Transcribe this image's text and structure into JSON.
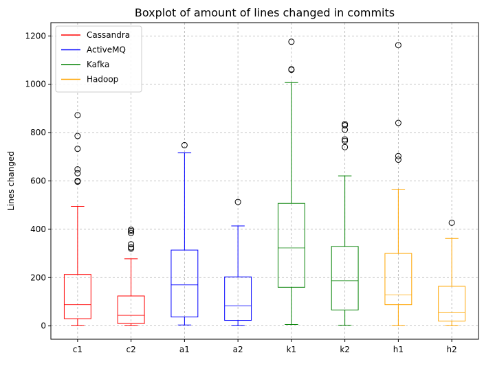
{
  "chart_data": {
    "type": "box",
    "title": "Boxplot of amount of lines changed in commits",
    "xlabel": "",
    "ylabel": "Lines changed",
    "ylim": [
      -55,
      1255
    ],
    "yticks": [
      0,
      200,
      400,
      600,
      800,
      1000,
      1200
    ],
    "grid": true,
    "legend_position": "top-left",
    "legend": [
      {
        "name": "Cassandra",
        "color": "#ff0000"
      },
      {
        "name": "ActiveMQ",
        "color": "#0000ff"
      },
      {
        "name": "Kafka",
        "color": "#008000"
      },
      {
        "name": "Hadoop",
        "color": "#ffa500"
      }
    ],
    "boxes": [
      {
        "category": "c1",
        "color": "#ff0000",
        "whisker_low": 1,
        "q1": 30,
        "median": 88,
        "q3": 213,
        "whisker_high": 495,
        "outliers": [
          597,
          600,
          632,
          648,
          733,
          786,
          872
        ]
      },
      {
        "category": "c2",
        "color": "#ff0000",
        "whisker_low": 1,
        "q1": 10,
        "median": 44,
        "q3": 124,
        "whisker_high": 278,
        "outliers": [
          320,
          325,
          338,
          385,
          393,
          398
        ]
      },
      {
        "category": "a1",
        "color": "#0000ff",
        "whisker_low": 4,
        "q1": 37,
        "median": 170,
        "q3": 314,
        "whisker_high": 716,
        "outliers": [
          748
        ]
      },
      {
        "category": "a2",
        "color": "#0000ff",
        "whisker_low": 1,
        "q1": 23,
        "median": 83,
        "q3": 203,
        "whisker_high": 414,
        "outliers": [
          513
        ]
      },
      {
        "category": "k1",
        "color": "#008000",
        "whisker_low": 6,
        "q1": 160,
        "median": 323,
        "q3": 507,
        "whisker_high": 1007,
        "outliers": [
          1060,
          1062,
          1176
        ]
      },
      {
        "category": "k2",
        "color": "#008000",
        "whisker_low": 3,
        "q1": 66,
        "median": 187,
        "q3": 329,
        "whisker_high": 621,
        "outliers": [
          740,
          766,
          772,
          812,
          830,
          835
        ]
      },
      {
        "category": "h1",
        "color": "#ffa500",
        "whisker_low": 1,
        "q1": 88,
        "median": 128,
        "q3": 300,
        "whisker_high": 566,
        "outliers": [
          688,
          703,
          840,
          1162
        ]
      },
      {
        "category": "h2",
        "color": "#ffa500",
        "whisker_low": 1,
        "q1": 20,
        "median": 55,
        "q3": 164,
        "whisker_high": 362,
        "outliers": [
          427
        ]
      }
    ]
  }
}
